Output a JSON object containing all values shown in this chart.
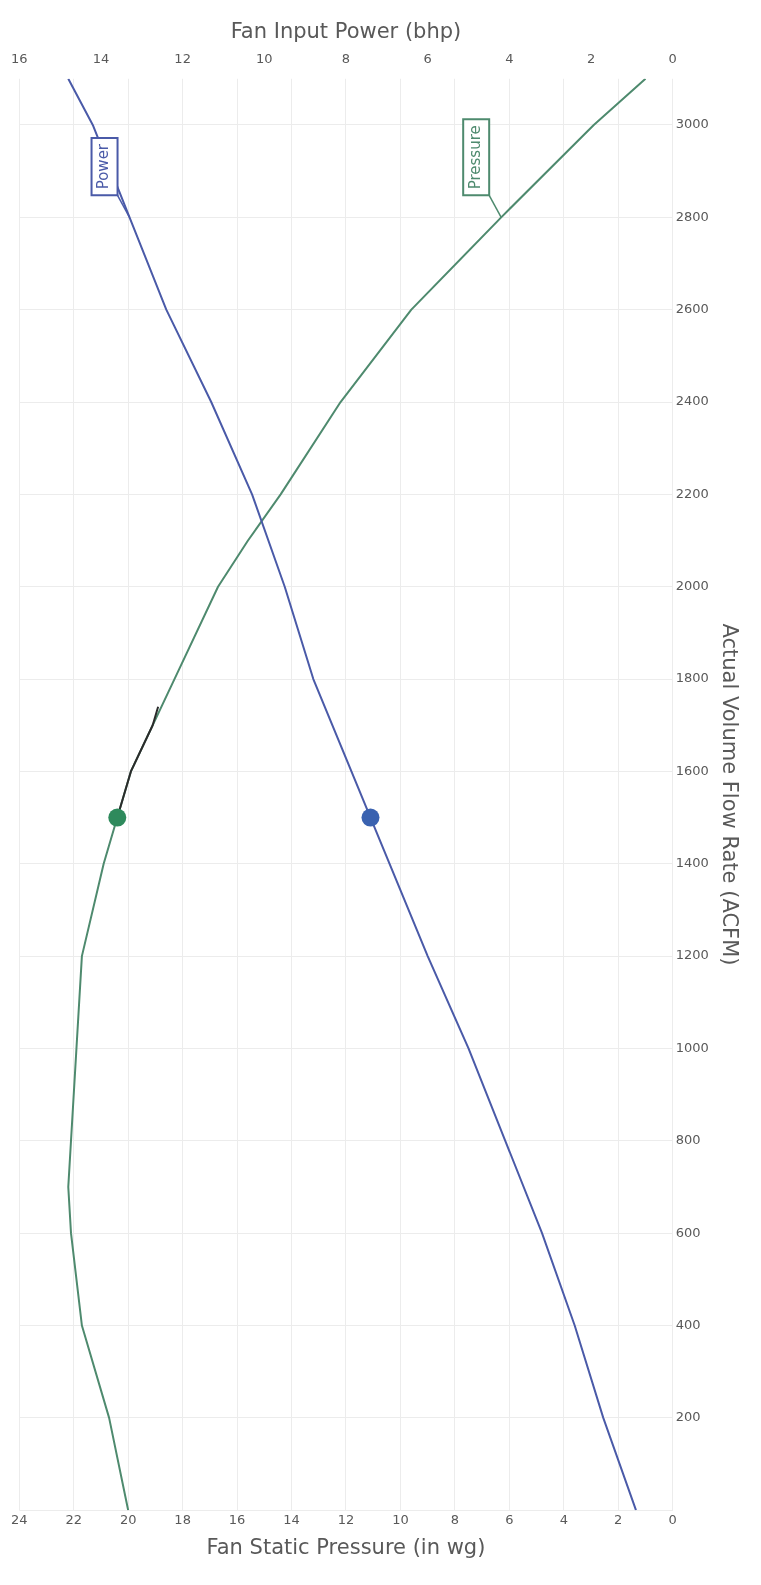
{
  "chart_data": {
    "type": "line",
    "xlabel": "Fan Static Pressure (in wg)",
    "x2label": "Fan Input Power (bhp)",
    "ylabel": "Actual Volume Flow Rate (ACFM)",
    "xlim": [
      24,
      0
    ],
    "xticks": [
      24,
      22,
      20,
      18,
      16,
      14,
      12,
      10,
      8,
      6,
      4,
      2,
      0
    ],
    "x2lim": [
      16,
      0
    ],
    "x2ticks": [
      16,
      14,
      12,
      10,
      8,
      6,
      4,
      2,
      0
    ],
    "ylim": [
      0,
      3100
    ],
    "yticks": [
      {
        "value": 0,
        "label": null
      },
      200,
      400,
      600,
      800,
      1000,
      1200,
      1400,
      1600,
      1800,
      2000,
      2200,
      2400,
      2600,
      2800,
      3000
    ],
    "grid": true,
    "legend": false,
    "marker": "none",
    "line_style": "solid",
    "series": [
      {
        "name": "Pressure",
        "type": "line",
        "color": "#4e8a6e",
        "values": [
          0,
          200,
          400,
          600,
          700,
          800,
          1000,
          1200,
          1400,
          1500,
          1600,
          1800,
          2000,
          2100,
          2200,
          2400,
          2600,
          2800,
          3000,
          3100
        ],
        "x": [
          20.0,
          20.7,
          21.7,
          22.1,
          22.2,
          22.1,
          21.9,
          21.7,
          20.9,
          20.4,
          19.9,
          18.3,
          16.7,
          15.6,
          14.4,
          12.2,
          9.6,
          6.3,
          2.9,
          1.0
        ]
      },
      {
        "name": "Power",
        "type": "line",
        "color": "#4a5aa8",
        "axis": "x2",
        "values": [
          0,
          200,
          400,
          600,
          800,
          1000,
          1200,
          1500,
          1800,
          2000,
          2200,
          2400,
          2600,
          2800,
          3000,
          3100
        ],
        "x": [
          0.9,
          1.7,
          2.4,
          3.2,
          4.1,
          5.0,
          6.0,
          7.4,
          8.8,
          9.5,
          10.3,
          11.3,
          12.4,
          13.3,
          14.2,
          14.8
        ]
      },
      {
        "type": "line",
        "color": "#2b2b2b",
        "values": [
          1500,
          1600,
          1700,
          1740
        ],
        "x": [
          20.4,
          19.9,
          19.1,
          18.9
        ]
      },
      {
        "type": "scatter",
        "color": "#2e8a5c",
        "marker": "circle",
        "values": [
          1500
        ],
        "x": [
          20.4
        ]
      },
      {
        "type": "scatter",
        "color": "#3a62b0",
        "marker": "circle",
        "axis": "x2",
        "values": [
          1500
        ],
        "x": [
          7.4
        ]
      }
    ]
  }
}
